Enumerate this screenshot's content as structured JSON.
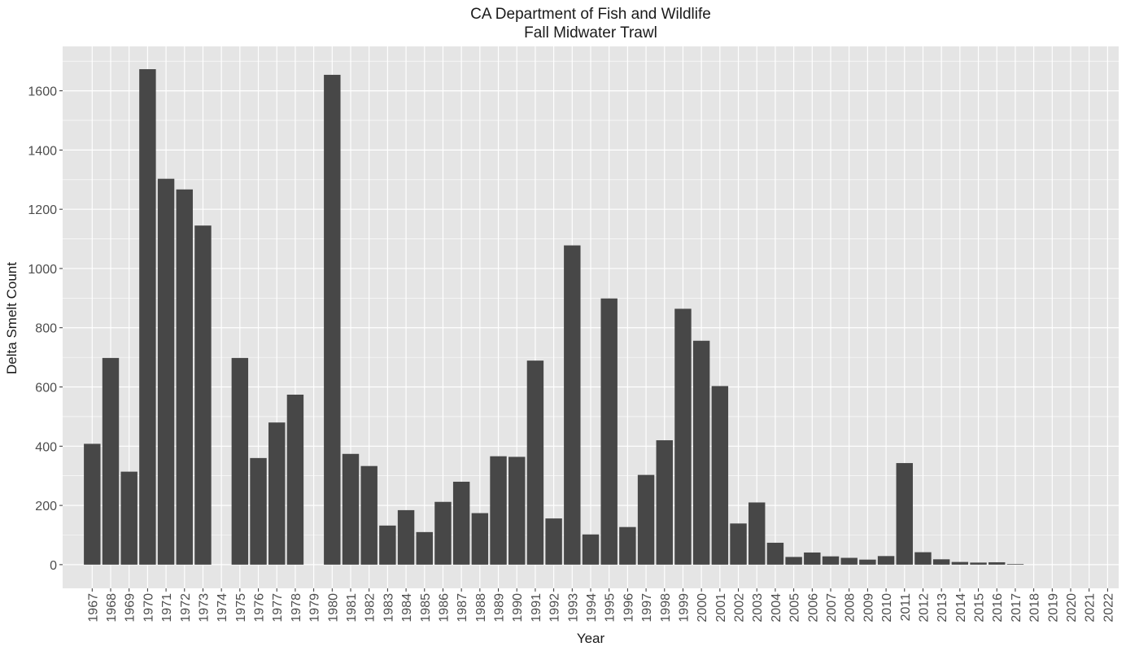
{
  "chart_data": {
    "type": "bar",
    "title": [
      "CA Department of Fish and Wildlife",
      "Fall Midwater Trawl"
    ],
    "xlabel": "Year",
    "ylabel": "Delta Smelt Count",
    "ylim": [
      -80,
      1750
    ],
    "yticks": [
      0,
      200,
      400,
      600,
      800,
      1000,
      1200,
      1400,
      1600
    ],
    "grid": true,
    "legend": "none",
    "colors": {
      "panel": "#e5e5e5",
      "grid": "#ffffff",
      "bar": "#474747",
      "text": "#4d4d4d"
    },
    "categories": [
      "1967",
      "1968",
      "1969",
      "1970",
      "1971",
      "1972",
      "1973",
      "1974",
      "1975",
      "1976",
      "1977",
      "1978",
      "1979",
      "1980",
      "1981",
      "1982",
      "1983",
      "1984",
      "1985",
      "1986",
      "1987",
      "1988",
      "1989",
      "1990",
      "1991",
      "1992",
      "1993",
      "1994",
      "1995",
      "1996",
      "1997",
      "1998",
      "1999",
      "2000",
      "2001",
      "2002",
      "2003",
      "2004",
      "2005",
      "2006",
      "2007",
      "2008",
      "2009",
      "2010",
      "2011",
      "2012",
      "2013",
      "2014",
      "2015",
      "2016",
      "2017",
      "2018",
      "2019",
      "2020",
      "2021",
      "2022"
    ],
    "values": [
      408,
      698,
      314,
      1673,
      1303,
      1267,
      1145,
      0,
      698,
      360,
      480,
      574,
      0,
      1654,
      374,
      333,
      132,
      184,
      110,
      212,
      280,
      174,
      366,
      364,
      689,
      156,
      1078,
      102,
      899,
      127,
      303,
      420,
      864,
      756,
      603,
      139,
      210,
      74,
      26,
      41,
      28,
      23,
      17,
      29,
      343,
      42,
      18,
      9,
      7,
      8,
      2,
      0,
      0,
      0,
      0,
      0
    ]
  }
}
